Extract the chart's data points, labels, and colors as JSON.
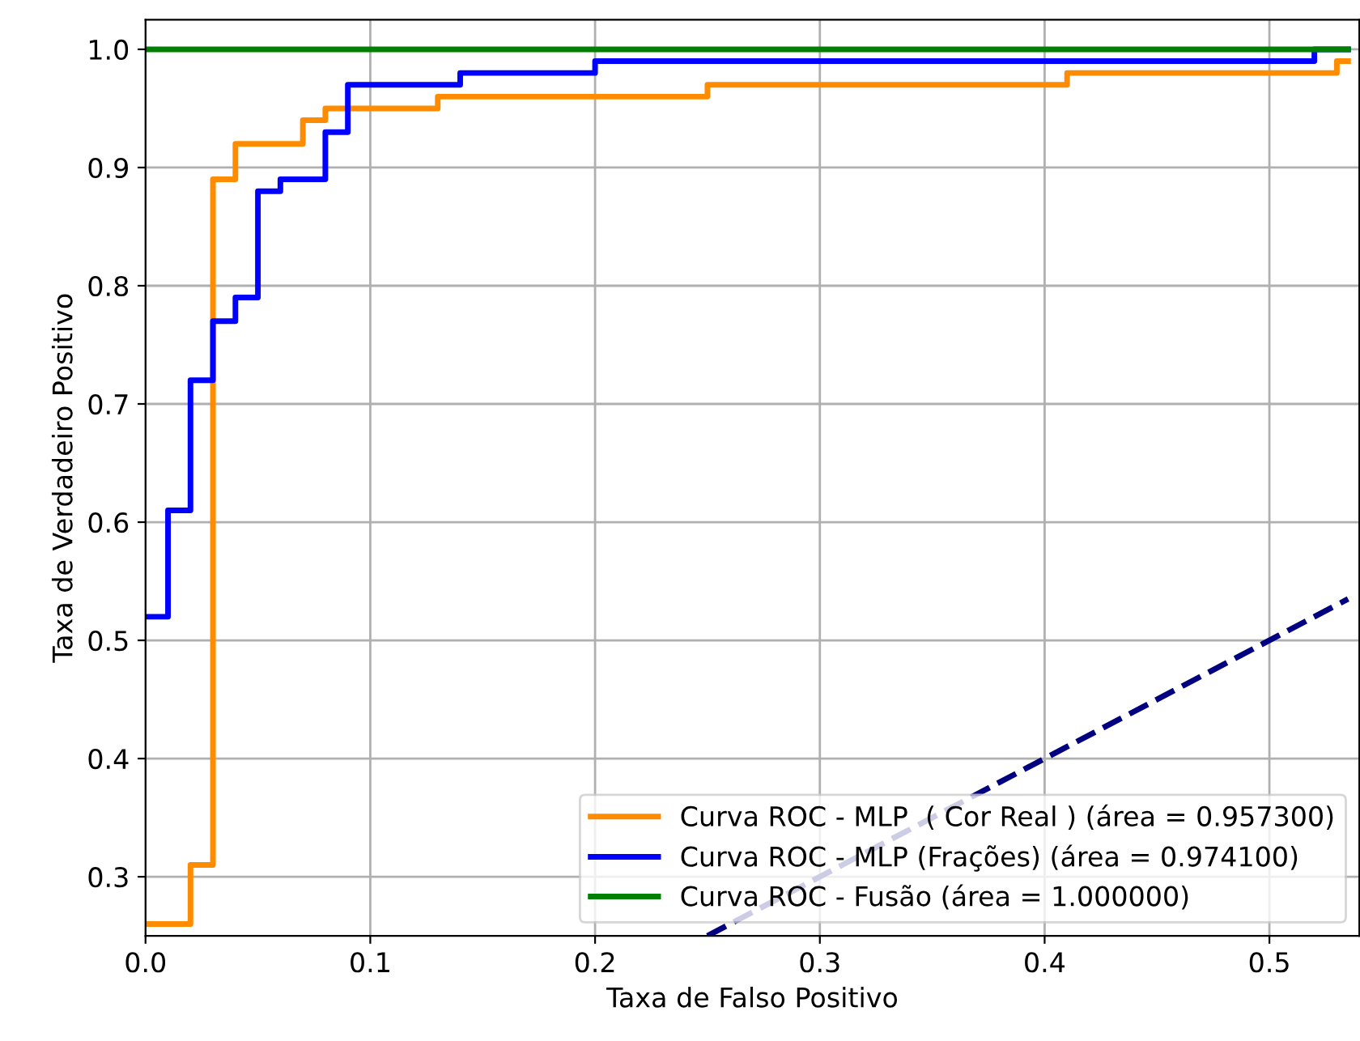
{
  "chart_data": {
    "type": "line",
    "xlabel": "Taxa de Falso Positivo",
    "ylabel": "Taxa de Verdadeiro Positivo",
    "series": [
      {
        "name": "Curva ROC - MLP  ( Cor Real ) (área = 0.957300)",
        "color": "#ff8c00",
        "x": [
          0,
          0.02,
          0.02,
          0.03,
          0.03,
          0.04,
          0.04,
          0.07,
          0.07,
          0.08,
          0.08,
          0.13,
          0.13,
          0.25,
          0.25,
          0.41,
          0.41,
          0.53,
          0.53,
          0.535
        ],
        "values": [
          0.26,
          0.26,
          0.31,
          0.31,
          0.89,
          0.89,
          0.92,
          0.92,
          0.94,
          0.94,
          0.95,
          0.95,
          0.96,
          0.96,
          0.97,
          0.97,
          0.98,
          0.98,
          0.99,
          0.99
        ]
      },
      {
        "name": "Curva ROC - MLP (Frações) (área = 0.974100)",
        "color": "#0000ff",
        "x": [
          0,
          0.01,
          0.01,
          0.02,
          0.02,
          0.03,
          0.03,
          0.04,
          0.04,
          0.05,
          0.05,
          0.06,
          0.06,
          0.08,
          0.08,
          0.09,
          0.09,
          0.14,
          0.14,
          0.2,
          0.2,
          0.52,
          0.52,
          0.535
        ],
        "values": [
          0.52,
          0.52,
          0.61,
          0.61,
          0.72,
          0.72,
          0.77,
          0.77,
          0.79,
          0.79,
          0.88,
          0.88,
          0.89,
          0.89,
          0.93,
          0.93,
          0.97,
          0.97,
          0.98,
          0.98,
          0.99,
          0.99,
          1.0,
          1.0
        ]
      },
      {
        "name": "Curva ROC - Fusão (área = 1.000000)",
        "color": "#008000",
        "x": [
          0,
          0.535
        ],
        "values": [
          1.0,
          1.0
        ]
      },
      {
        "color": "#000080",
        "line_style": "dashed",
        "x": [
          0.25,
          0.535
        ],
        "values": [
          0.25,
          0.535
        ]
      }
    ],
    "xlim": [
      0,
      0.54
    ],
    "ylim": [
      0.25,
      1.025
    ],
    "xticks": [
      {
        "value": 0,
        "label": "0.0"
      },
      0.1,
      0.2,
      0.3,
      0.4,
      0.5
    ],
    "yticks": [
      0.3,
      0.4,
      0.5,
      0.6,
      0.7,
      0.8,
      0.9,
      {
        "value": 1,
        "label": "1.0"
      }
    ],
    "grid": true,
    "legend": "bottom right"
  }
}
